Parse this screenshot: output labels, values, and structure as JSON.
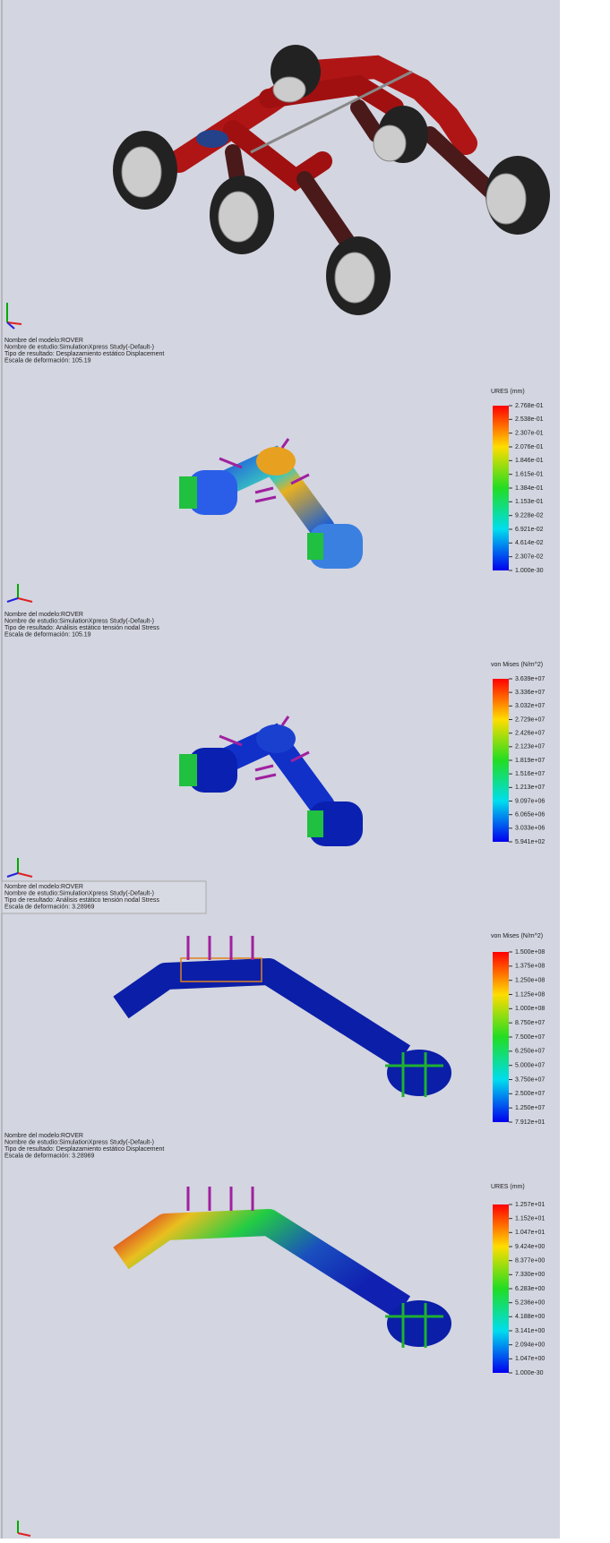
{
  "captions": [
    {
      "lines": [
        "Nombre del modelo:ROVER",
        "Nombre de estudio:SimulationXpress Study(-Default-)",
        "Tipo de resultado: Desplazamiento estático Displacement",
        "Escala de deformación: 105.19"
      ]
    },
    {
      "lines": [
        "Nombre del modelo:ROVER",
        "Nombre de estudio:SimulationXpress Study(-Default-)",
        "Tipo de resultado: Análisis estático tensión nodal Stress",
        "Escala de deformación: 105.19"
      ]
    },
    {
      "lines": [
        "Nombre del modelo:ROVER",
        "Nombre de estudio:SimulationXpress Study(-Default-)",
        "Tipo de resultado: Análisis estático tensión nodal Stress",
        "Escala de deformación: 3.28969"
      ]
    },
    {
      "lines": [
        "Nombre del modelo:ROVER",
        "Nombre de estudio:SimulationXpress Study(-Default-)",
        "Tipo de resultado: Desplazamiento estático Displacement",
        "Escala de deformación: 3.28969"
      ]
    }
  ],
  "legends": [
    {
      "title": "URES (mm)",
      "labels": [
        "2.768e-01",
        "2.538e-01",
        "2.307e-01",
        "2.076e-01",
        "1.846e-01",
        "1.615e-01",
        "1.384e-01",
        "1.153e-01",
        "9.228e-02",
        "6.921e-02",
        "4.614e-02",
        "2.307e-02",
        "1.000e-30"
      ]
    },
    {
      "title": "von Mises (N/m^2)",
      "labels": [
        "3.639e+07",
        "3.336e+07",
        "3.032e+07",
        "2.729e+07",
        "2.426e+07",
        "2.123e+07",
        "1.819e+07",
        "1.516e+07",
        "1.213e+07",
        "9.097e+06",
        "6.065e+06",
        "3.033e+06",
        "5.941e+02"
      ]
    },
    {
      "title": "von Mises (N/m^2)",
      "labels": [
        "1.500e+08",
        "1.375e+08",
        "1.250e+08",
        "1.125e+08",
        "1.000e+08",
        "8.750e+07",
        "7.500e+07",
        "6.250e+07",
        "5.000e+07",
        "3.750e+07",
        "2.500e+07",
        "1.250e+07",
        "7.912e+01"
      ]
    },
    {
      "title": "URES (mm)",
      "labels": [
        "1.257e+01",
        "1.152e+01",
        "1.047e+01",
        "9.424e+00",
        "8.377e+00",
        "7.330e+00",
        "6.283e+00",
        "5.236e+00",
        "4.188e+00",
        "3.141e+00",
        "2.094e+00",
        "1.047e+00",
        "1.000e-30"
      ]
    }
  ]
}
